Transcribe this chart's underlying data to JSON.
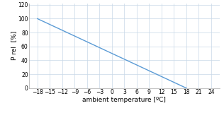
{
  "x_data": [
    -18,
    18
  ],
  "y_data": [
    100,
    0
  ],
  "x_ticks": [
    -18,
    -15,
    -12,
    -9,
    -6,
    -3,
    0,
    3,
    6,
    9,
    12,
    15,
    18,
    21,
    24
  ],
  "y_ticks": [
    0,
    20,
    40,
    60,
    80,
    100,
    120
  ],
  "xlim": [
    -20,
    26
  ],
  "ylim": [
    0,
    122
  ],
  "xlabel": "ambient temperature [ºC]",
  "ylabel": "P rel  [%]",
  "line_color": "#5b9bd5",
  "line_width": 1.0,
  "grid_color": "#c8d8e8",
  "background_color": "#ffffff",
  "xlabel_fontsize": 6.5,
  "ylabel_fontsize": 6.5,
  "tick_fontsize": 5.5,
  "spine_color": "#aaaaaa",
  "title": ""
}
